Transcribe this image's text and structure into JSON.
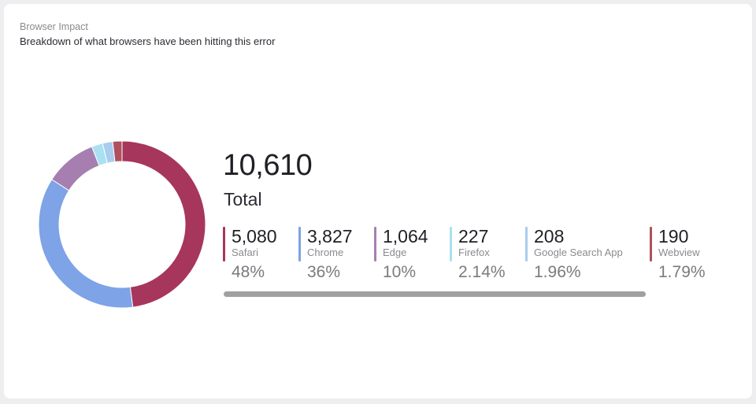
{
  "card": {
    "title": "Browser Impact",
    "subtitle": "Breakdown of what browsers have been hitting this error"
  },
  "total": {
    "value": "10,610",
    "label": "Total"
  },
  "legend": [
    {
      "count": "5,080",
      "name": "Safari",
      "pct": "48%"
    },
    {
      "count": "3,827",
      "name": "Chrome",
      "pct": "36%"
    },
    {
      "count": "1,064",
      "name": "Edge",
      "pct": "10%"
    },
    {
      "count": "227",
      "name": "Firefox",
      "pct": "2.14%"
    },
    {
      "count": "208",
      "name": "Google Search App",
      "pct": "1.96%"
    },
    {
      "count": "190",
      "name": "Webview",
      "pct": "1.79%"
    }
  ],
  "chart_data": {
    "type": "pie",
    "variant": "donut",
    "title": "Browser Impact",
    "subtitle": "Breakdown of what browsers have been hitting this error",
    "total": 10610,
    "categories": [
      "Safari",
      "Chrome",
      "Edge",
      "Firefox",
      "Google Search App",
      "Webview"
    ],
    "values": [
      5080,
      3827,
      1064,
      227,
      208,
      190
    ],
    "percentages": [
      48,
      36,
      10,
      2.14,
      1.96,
      1.79
    ],
    "colors": [
      "#a7365c",
      "#7ea3e6",
      "#a67fb0",
      "#a9e1f2",
      "#a9cdee",
      "#b0505e"
    ],
    "legend_placement": "right"
  }
}
